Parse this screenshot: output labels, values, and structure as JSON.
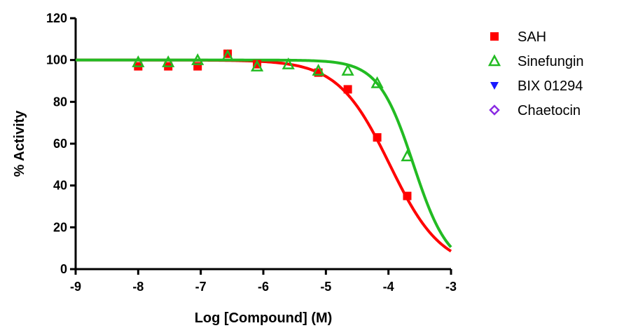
{
  "chart_data": {
    "type": "scatter",
    "title": "",
    "xlabel": "Log [Compound] (M)",
    "ylabel": "% Activity",
    "xlim": [
      -9,
      -3
    ],
    "ylim": [
      0,
      120
    ],
    "xticks": [
      -9,
      -8,
      -7,
      -6,
      -5,
      -4,
      -3
    ],
    "yticks": [
      0,
      20,
      40,
      60,
      80,
      100,
      120
    ],
    "xtick_labels": [
      "-9",
      "-8",
      "-7",
      "-6",
      "-5",
      "-4",
      "-3"
    ],
    "ytick_labels": [
      "0",
      "20",
      "40",
      "60",
      "80",
      "100",
      "120"
    ],
    "grid": false,
    "legend_position": "right",
    "series": [
      {
        "name": "SAH",
        "color": "#ff0000",
        "marker": "filled-square",
        "fit_curve": true,
        "x": [
          -8.0,
          -7.52,
          -7.05,
          -6.57,
          -6.1,
          -5.12,
          -4.65,
          -4.18,
          -3.7
        ],
        "y": [
          97,
          97,
          97,
          103,
          98,
          94,
          86,
          63,
          35
        ],
        "fit": {
          "top": 100,
          "bottom": 0,
          "log_ic50": -3.98,
          "hill": -1.05
        }
      },
      {
        "name": "Sinefungin",
        "color": "#22bb22",
        "marker": "open-triangle",
        "fit_curve": true,
        "x": [
          -8.0,
          -7.52,
          -7.05,
          -6.57,
          -6.1,
          -5.6,
          -5.12,
          -4.65,
          -4.18,
          -3.7
        ],
        "y": [
          99,
          99,
          100,
          102,
          97,
          98,
          95,
          95,
          89,
          54
        ],
        "fit": {
          "top": 100,
          "bottom": 0,
          "log_ic50": -3.6,
          "hill": -1.55
        }
      },
      {
        "name": "BIX 01294",
        "color": "#1a1aff",
        "marker": "filled-triangle-down",
        "fit_curve": false,
        "x": [],
        "y": []
      },
      {
        "name": "Chaetocin",
        "color": "#8a2be2",
        "marker": "open-diamond",
        "fit_curve": false,
        "x": [],
        "y": []
      }
    ]
  }
}
